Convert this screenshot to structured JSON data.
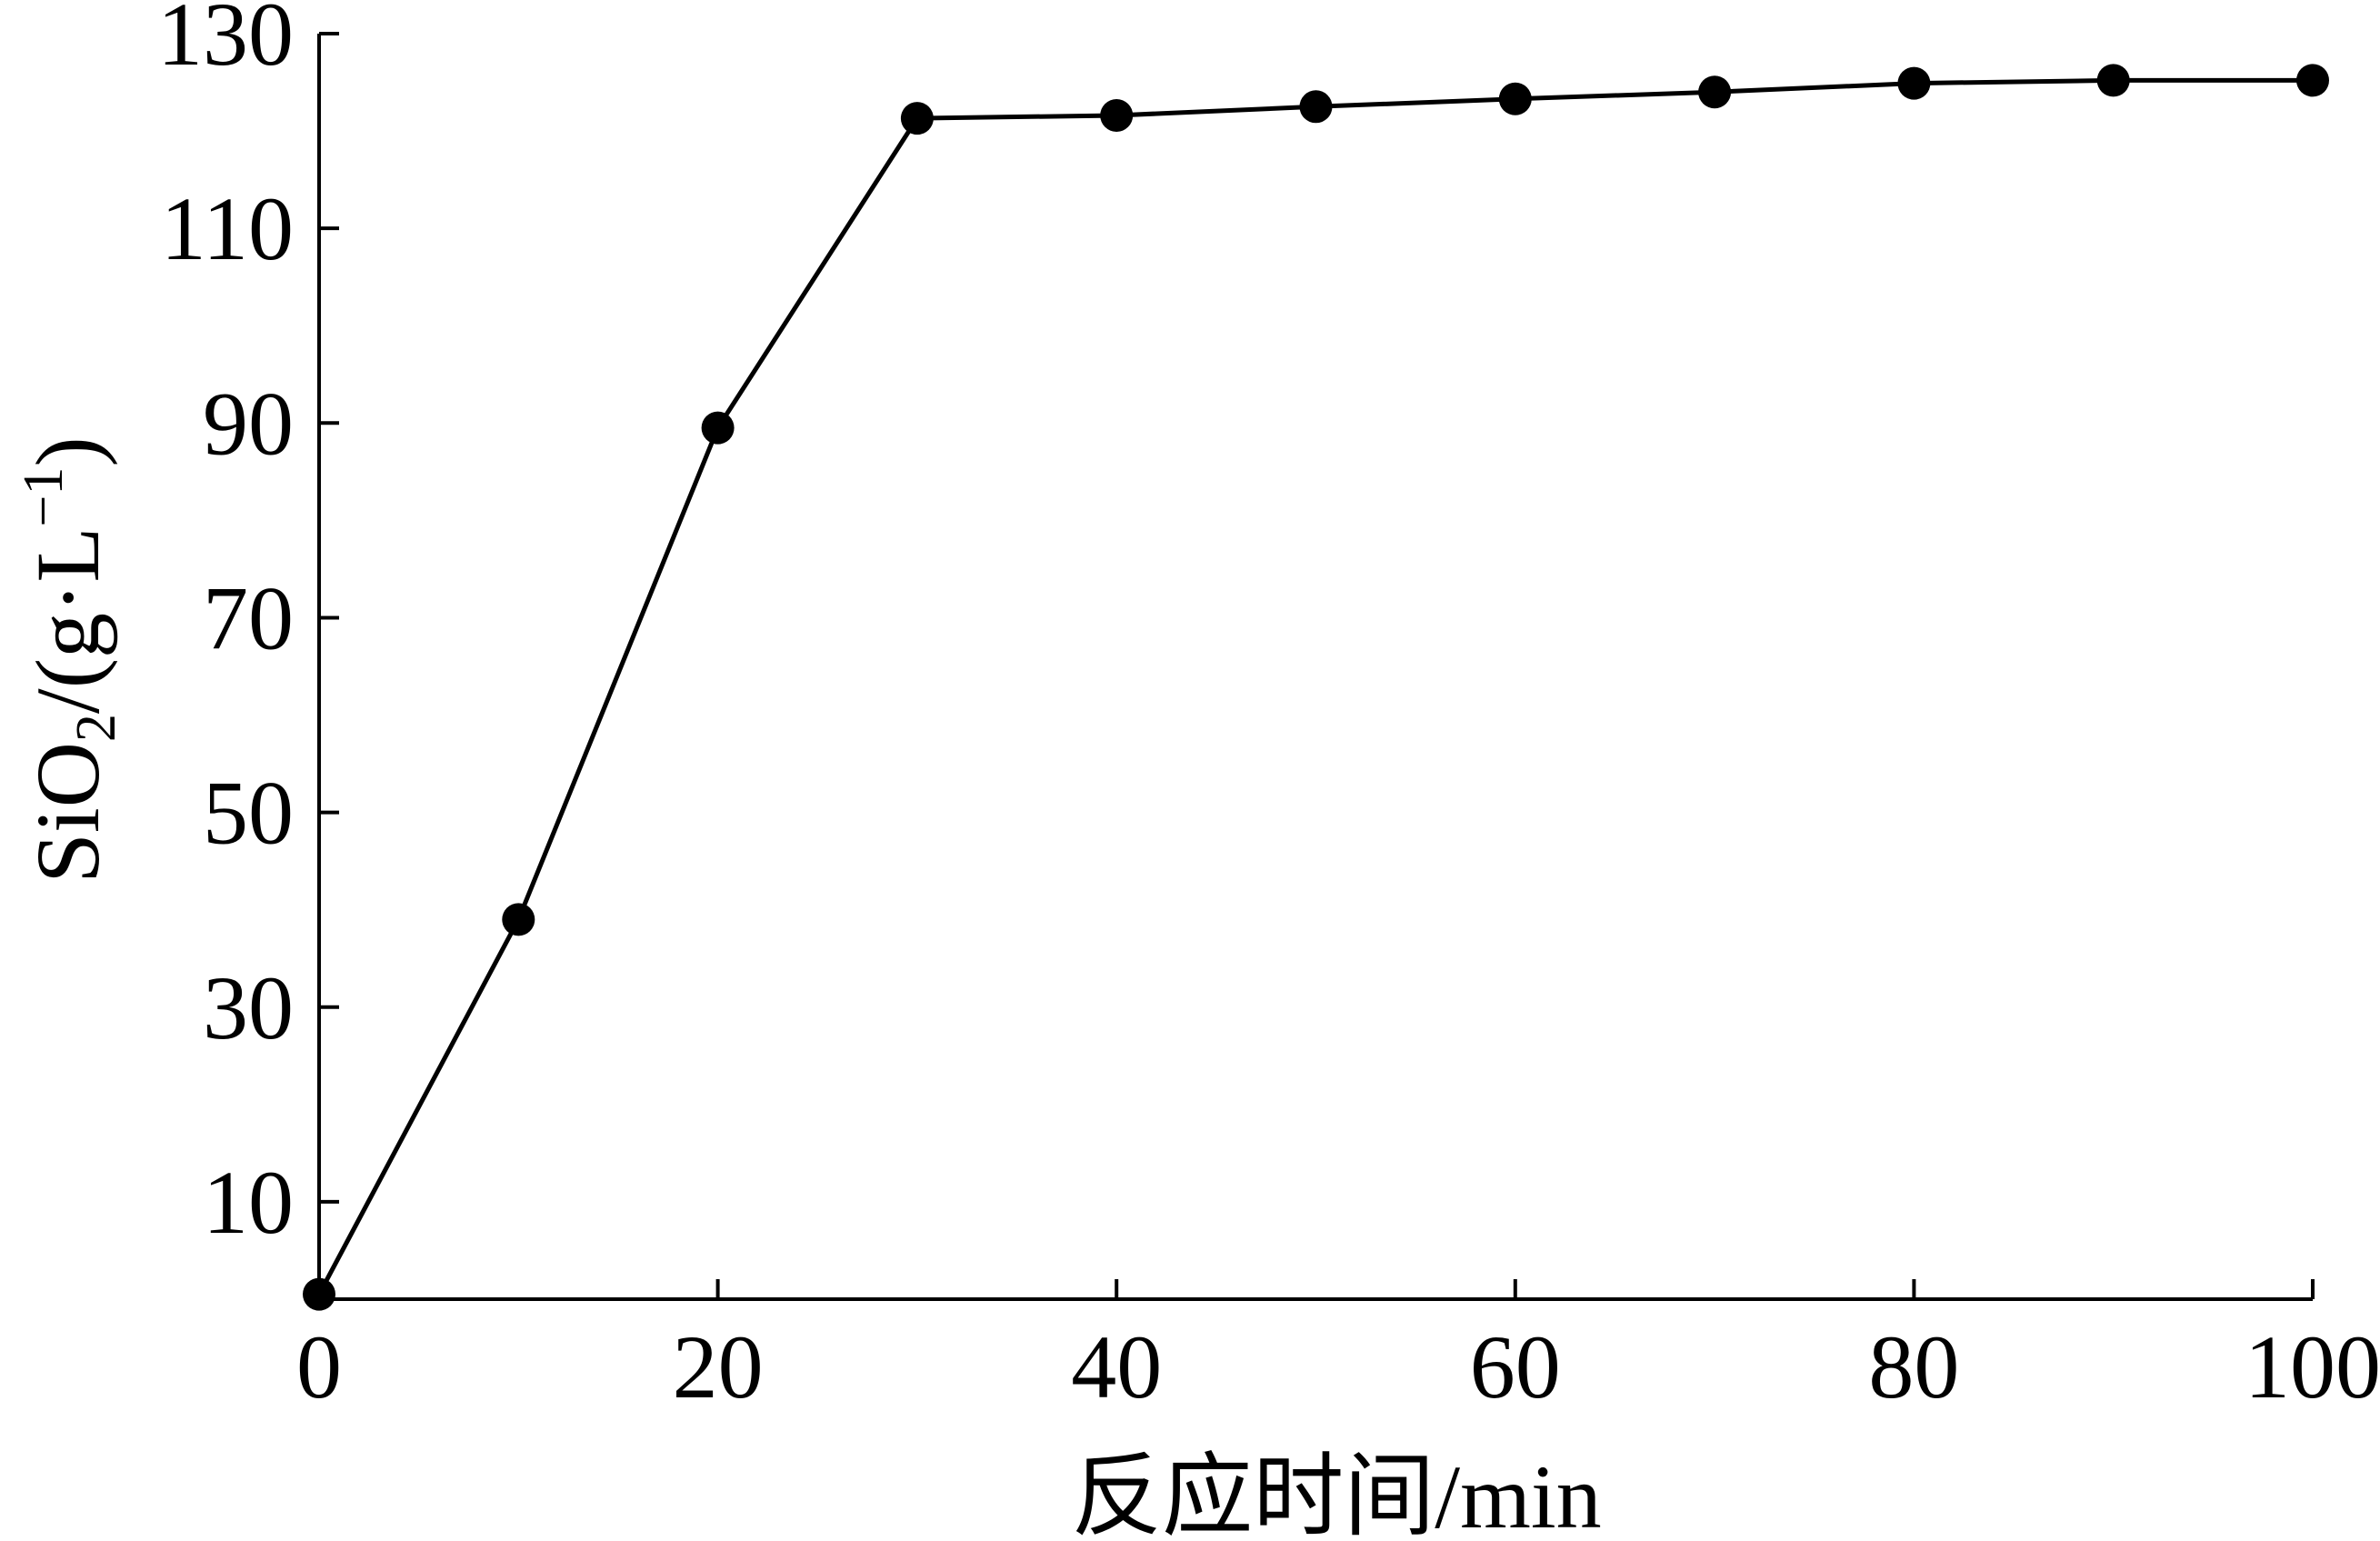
{
  "chart_data": {
    "type": "line",
    "x_label": "反应时间/min",
    "y_label": [
      "SiO",
      "2",
      "/(g·L",
      "−1",
      ")"
    ],
    "x": [
      0,
      10,
      20,
      30,
      40,
      50,
      60,
      70,
      80,
      90,
      100
    ],
    "series": [
      {
        "color": "#000000",
        "values": [
          0.5,
          39,
          89.5,
          121.3,
          121.6,
          122.5,
          123.3,
          124,
          124.9,
          125.2,
          125.2
        ]
      }
    ],
    "xlim": [
      0,
      100
    ],
    "xticks": [
      0,
      20,
      40,
      60,
      80,
      100
    ],
    "ylim": [
      0,
      130
    ],
    "yticks": [
      10,
      30,
      50,
      70,
      90,
      110,
      130
    ],
    "grid": false
  }
}
